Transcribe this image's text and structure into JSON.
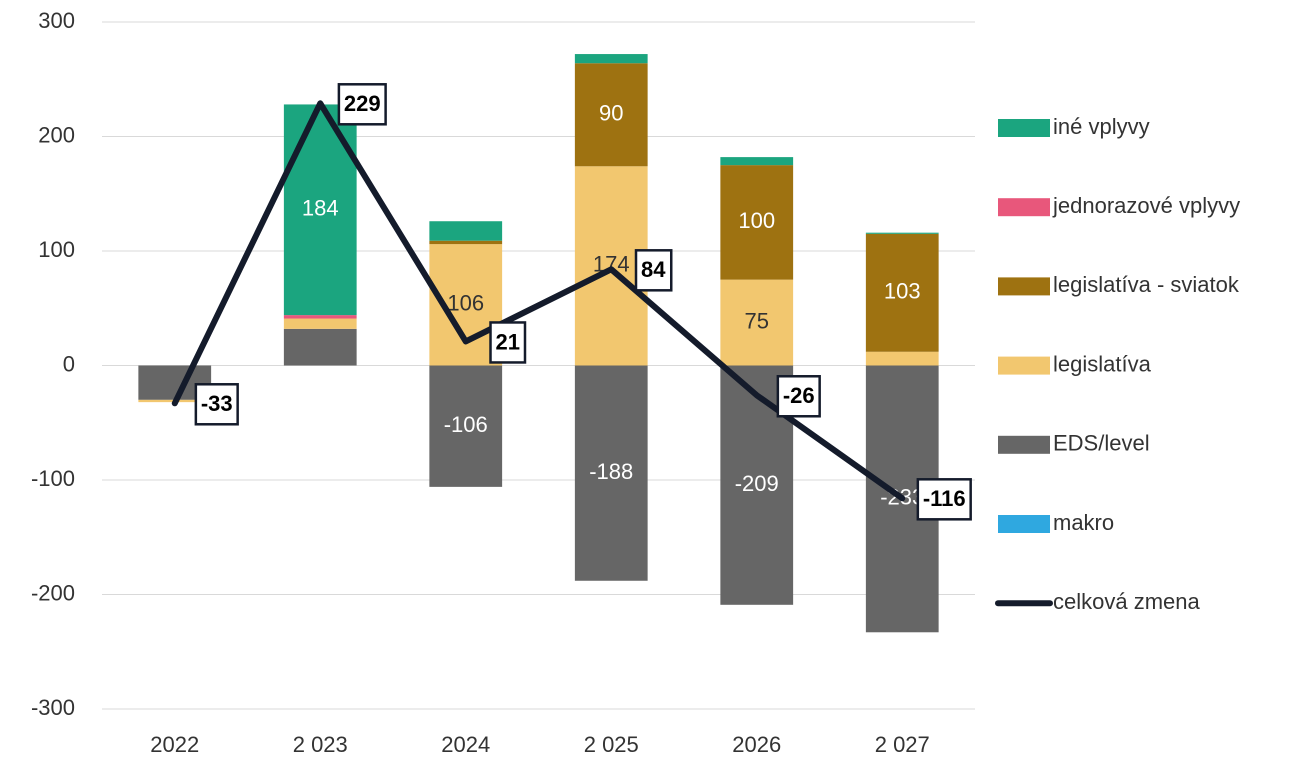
{
  "chart_data": {
    "type": "bar",
    "categories": [
      "2022",
      "2 023",
      "2024",
      "2 025",
      "2026",
      "2 027"
    ],
    "ylim": [
      -300,
      300
    ],
    "yticks": [
      -300,
      -200,
      -100,
      0,
      100,
      200,
      300
    ],
    "grid": true,
    "legend": "right",
    "series": [
      {
        "name": "iné vplyvy",
        "type": "bar",
        "color": "#1ba57f",
        "label_color": "#ffffff",
        "values": [
          0,
          184,
          17,
          8,
          7,
          1
        ],
        "value_labels": [
          null,
          "184",
          null,
          null,
          null,
          null
        ]
      },
      {
        "name": "jednorazové vplyvy",
        "type": "bar",
        "color": "#e8577b",
        "label_color": "#ffffff",
        "values": [
          0,
          3,
          0,
          0,
          0,
          0
        ],
        "value_labels": [
          null,
          null,
          null,
          null,
          null,
          null
        ]
      },
      {
        "name": "legislatíva - sviatok",
        "type": "bar",
        "color": "#9e7211",
        "label_color": "#ffffff",
        "values": [
          0,
          0,
          3,
          90,
          100,
          103
        ],
        "value_labels": [
          null,
          null,
          null,
          "90",
          "100",
          "103"
        ]
      },
      {
        "name": "legislatíva",
        "type": "bar",
        "color": "#f2c76f",
        "label_color": "#333333",
        "values": [
          -2,
          9,
          106,
          174,
          75,
          12
        ],
        "value_labels": [
          null,
          null,
          "106",
          "174",
          "75",
          null
        ]
      },
      {
        "name": "EDS/level",
        "type": "bar",
        "color": "#666666",
        "label_color": "#ffffff",
        "values": [
          -30,
          32,
          -106,
          -188,
          -209,
          -233
        ],
        "value_labels": [
          null,
          null,
          "-106",
          "-188",
          "-209",
          "-233"
        ]
      },
      {
        "name": "makro",
        "type": "bar",
        "color": "#2fa8e0",
        "label_color": "#ffffff",
        "values": [
          0,
          0,
          0,
          0,
          0,
          0
        ],
        "value_labels": [
          null,
          null,
          null,
          null,
          null,
          null
        ]
      },
      {
        "name": "celková zmena",
        "type": "line",
        "color": "#141b2b",
        "values": [
          -33,
          229,
          21,
          84,
          -26,
          -116
        ]
      }
    ]
  }
}
